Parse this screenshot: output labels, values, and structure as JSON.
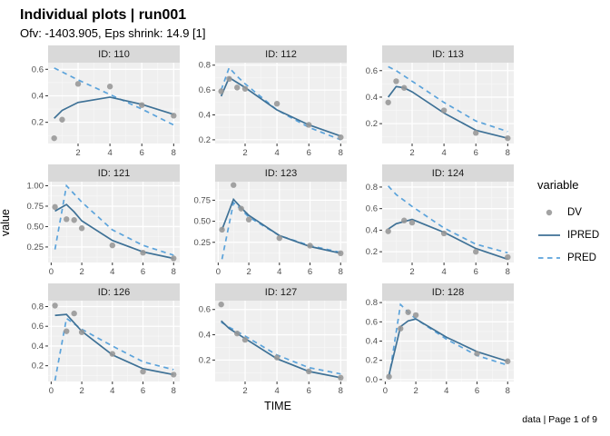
{
  "header": {
    "title": "Individual plots | run001",
    "subtitle": "Ofv: -1403.905, Eps shrink: 14.9 [1]"
  },
  "axes": {
    "x_label": "TIME",
    "y_label": "value"
  },
  "caption": "data | Page 1 of 9",
  "legend": {
    "title": "variable",
    "items": [
      {
        "label": "DV",
        "type": "point"
      },
      {
        "label": "IPRED",
        "type": "solid"
      },
      {
        "label": "PRED",
        "type": "dashed"
      }
    ]
  },
  "colors": {
    "dv": "#969696",
    "ipred": "#3E7196",
    "pred": "#5BA3DB",
    "strip_bg": "#D9D9D9",
    "strip_text": "#1A1A1A",
    "panel_bg": "#EFEFEF",
    "grid_major": "#FFFFFF",
    "grid_minor": "#F7F7F7",
    "tick_text": "#4D4D4D",
    "tick_mark": "#333333"
  },
  "chart_data": {
    "type": "line",
    "title": "Individual plots | run001",
    "xlabel": "TIME",
    "ylabel": "value",
    "legend_position": "right",
    "series_names": [
      "DV",
      "IPRED",
      "PRED"
    ],
    "facets": [
      {
        "id_label": "ID: 110",
        "xlim": [
          0.12,
          8.38
        ],
        "ylim": [
          0.04,
          0.65
        ],
        "xticks": [
          2,
          4,
          6,
          8
        ],
        "xtick_labels": [
          "2",
          "4",
          "6",
          "8"
        ],
        "yticks": [
          0.2,
          0.4,
          0.6
        ],
        "ytick_labels": [
          "0.2",
          "0.4",
          "0.6"
        ],
        "dv": [
          [
            0.5,
            0.08
          ],
          [
            1,
            0.22
          ],
          [
            2,
            0.49
          ],
          [
            4,
            0.47
          ],
          [
            6,
            0.33
          ],
          [
            8,
            0.25
          ]
        ],
        "ipred": [
          [
            0.5,
            0.23
          ],
          [
            1,
            0.29
          ],
          [
            2,
            0.35
          ],
          [
            4,
            0.39
          ],
          [
            6,
            0.335
          ],
          [
            8,
            0.26
          ]
        ],
        "pred": [
          [
            0.5,
            0.61
          ],
          [
            1,
            0.58
          ],
          [
            2,
            0.52
          ],
          [
            4,
            0.41
          ],
          [
            6,
            0.3
          ],
          [
            8,
            0.18
          ]
        ]
      },
      {
        "id_label": "ID: 112",
        "xlim": [
          0.12,
          8.38
        ],
        "ylim": [
          0.17,
          0.82
        ],
        "xticks": [
          2,
          4,
          6,
          8
        ],
        "xtick_labels": [
          "2",
          "4",
          "6",
          "8"
        ],
        "yticks": [
          0.2,
          0.4,
          0.6,
          0.8
        ],
        "ytick_labels": [
          "0.2",
          "0.4",
          "0.6",
          "0.8"
        ],
        "dv": [
          [
            0.5,
            0.59
          ],
          [
            1,
            0.69
          ],
          [
            1.5,
            0.62
          ],
          [
            2,
            0.61
          ],
          [
            4,
            0.49
          ],
          [
            6,
            0.32
          ],
          [
            8,
            0.22
          ]
        ],
        "ipred": [
          [
            0.5,
            0.55
          ],
          [
            1,
            0.7
          ],
          [
            1.5,
            0.66
          ],
          [
            2,
            0.62
          ],
          [
            4,
            0.44
          ],
          [
            6,
            0.32
          ],
          [
            8,
            0.23
          ]
        ],
        "pred": [
          [
            0.5,
            0.6
          ],
          [
            1,
            0.78
          ],
          [
            1.5,
            0.71
          ],
          [
            2,
            0.65
          ],
          [
            4,
            0.44
          ],
          [
            6,
            0.3
          ],
          [
            8,
            0.2
          ]
        ]
      },
      {
        "id_label": "ID: 113",
        "xlim": [
          0.12,
          8.38
        ],
        "ylim": [
          0.05,
          0.66
        ],
        "xticks": [
          2,
          4,
          6,
          8
        ],
        "xtick_labels": [
          "2",
          "4",
          "6",
          "8"
        ],
        "yticks": [
          0.2,
          0.4,
          0.6
        ],
        "ytick_labels": [
          "0.2",
          "0.4",
          "0.6"
        ],
        "dv": [
          [
            0.5,
            0.36
          ],
          [
            1,
            0.52
          ],
          [
            1.5,
            0.47
          ],
          [
            4,
            0.3
          ],
          [
            6,
            0.13
          ],
          [
            8,
            0.09
          ]
        ],
        "ipred": [
          [
            0.5,
            0.4
          ],
          [
            1,
            0.48
          ],
          [
            1.5,
            0.47
          ],
          [
            2,
            0.44
          ],
          [
            4,
            0.28
          ],
          [
            6,
            0.15
          ],
          [
            8,
            0.09
          ]
        ],
        "pred": [
          [
            0.5,
            0.63
          ],
          [
            1,
            0.6
          ],
          [
            2,
            0.52
          ],
          [
            4,
            0.36
          ],
          [
            6,
            0.22
          ],
          [
            8,
            0.14
          ]
        ]
      },
      {
        "id_label": "ID: 121",
        "xlim": [
          -0.2,
          8.4
        ],
        "ylim": [
          0.06,
          1.05
        ],
        "xticks": [
          0,
          2,
          4,
          6,
          8
        ],
        "xtick_labels": [
          "0",
          "2",
          "4",
          "6",
          "8"
        ],
        "yticks": [
          0.25,
          0.5,
          0.75,
          1.0
        ],
        "ytick_labels": [
          "0.25",
          "0.50",
          "0.75",
          "1.00"
        ],
        "dv": [
          [
            0.25,
            0.74
          ],
          [
            1,
            0.59
          ],
          [
            1.5,
            0.58
          ],
          [
            2,
            0.48
          ],
          [
            4,
            0.27
          ],
          [
            6,
            0.18
          ],
          [
            8,
            0.11
          ]
        ],
        "ipred": [
          [
            0.25,
            0.69
          ],
          [
            1,
            0.77
          ],
          [
            1.5,
            0.68
          ],
          [
            2,
            0.57
          ],
          [
            4,
            0.33
          ],
          [
            6,
            0.19
          ],
          [
            8,
            0.11
          ]
        ],
        "pred": [
          [
            0.25,
            0.22
          ],
          [
            1,
            1.0
          ],
          [
            1.5,
            0.9
          ],
          [
            2,
            0.8
          ],
          [
            4,
            0.46
          ],
          [
            6,
            0.27
          ],
          [
            8,
            0.15
          ]
        ]
      },
      {
        "id_label": "ID: 123",
        "xlim": [
          -0.2,
          8.4
        ],
        "ylim": [
          0.01,
          0.97
        ],
        "xticks": [
          0,
          2,
          4,
          6,
          8
        ],
        "xtick_labels": [
          "0",
          "2",
          "4",
          "6",
          "8"
        ],
        "yticks": [
          0.25,
          0.5,
          0.75
        ],
        "ytick_labels": [
          "0.25",
          "0.50",
          "0.75"
        ],
        "dv": [
          [
            0.25,
            0.4
          ],
          [
            1,
            0.93
          ],
          [
            1.5,
            0.65
          ],
          [
            2,
            0.52
          ],
          [
            4,
            0.3
          ],
          [
            6,
            0.21
          ],
          [
            8,
            0.12
          ]
        ],
        "ipred": [
          [
            0.25,
            0.4
          ],
          [
            1,
            0.76
          ],
          [
            1.5,
            0.66
          ],
          [
            2,
            0.57
          ],
          [
            4,
            0.33
          ],
          [
            6,
            0.2
          ],
          [
            8,
            0.12
          ]
        ],
        "pred": [
          [
            0.25,
            0.05
          ],
          [
            1,
            0.72
          ],
          [
            1.5,
            0.64
          ],
          [
            2,
            0.55
          ],
          [
            4,
            0.33
          ],
          [
            6,
            0.21
          ],
          [
            8,
            0.13
          ]
        ]
      },
      {
        "id_label": "ID: 124",
        "xlim": [
          0.12,
          8.38
        ],
        "ylim": [
          0.1,
          0.85
        ],
        "xticks": [
          2,
          4,
          6,
          8
        ],
        "xtick_labels": [
          "2",
          "4",
          "6",
          "8"
        ],
        "yticks": [
          0.2,
          0.4,
          0.6,
          0.8
        ],
        "ytick_labels": [
          "0.2",
          "0.4",
          "0.6",
          "0.8"
        ],
        "dv": [
          [
            0.5,
            0.39
          ],
          [
            1.5,
            0.49
          ],
          [
            2,
            0.47
          ],
          [
            4,
            0.37
          ],
          [
            6,
            0.2
          ],
          [
            8,
            0.15
          ]
        ],
        "ipred": [
          [
            0.5,
            0.41
          ],
          [
            1,
            0.46
          ],
          [
            2,
            0.5
          ],
          [
            4,
            0.38
          ],
          [
            6,
            0.23
          ],
          [
            8,
            0.13
          ]
        ],
        "pred": [
          [
            0.5,
            0.81
          ],
          [
            1,
            0.73
          ],
          [
            2,
            0.62
          ],
          [
            4,
            0.42
          ],
          [
            6,
            0.27
          ],
          [
            8,
            0.19
          ]
        ]
      },
      {
        "id_label": "ID: 126",
        "xlim": [
          -0.2,
          8.4
        ],
        "ylim": [
          0.04,
          0.86
        ],
        "xticks": [
          0,
          2,
          4,
          6,
          8
        ],
        "xtick_labels": [
          "0",
          "2",
          "4",
          "6",
          "8"
        ],
        "yticks": [
          0.2,
          0.4,
          0.6,
          0.8
        ],
        "ytick_labels": [
          "0.2",
          "0.4",
          "0.6",
          "0.8"
        ],
        "dv": [
          [
            0.25,
            0.81
          ],
          [
            1,
            0.55
          ],
          [
            1.5,
            0.73
          ],
          [
            2,
            0.54
          ],
          [
            4,
            0.32
          ],
          [
            6,
            0.14
          ],
          [
            8,
            0.11
          ]
        ],
        "ipred": [
          [
            0.25,
            0.71
          ],
          [
            1,
            0.72
          ],
          [
            2,
            0.55
          ],
          [
            4,
            0.31
          ],
          [
            6,
            0.17
          ],
          [
            8,
            0.11
          ]
        ],
        "pred": [
          [
            0.25,
            0.05
          ],
          [
            1,
            0.68
          ],
          [
            2,
            0.57
          ],
          [
            4,
            0.4
          ],
          [
            6,
            0.24
          ],
          [
            8,
            0.16
          ]
        ]
      },
      {
        "id_label": "ID: 127",
        "xlim": [
          0.12,
          8.38
        ],
        "ylim": [
          0.03,
          0.67
        ],
        "xticks": [
          2,
          4,
          6,
          8
        ],
        "xtick_labels": [
          "2",
          "4",
          "6",
          "8"
        ],
        "yticks": [
          0.2,
          0.4,
          0.6
        ],
        "ytick_labels": [
          "0.2",
          "0.4",
          "0.6"
        ],
        "dv": [
          [
            0.5,
            0.64
          ],
          [
            1.5,
            0.41
          ],
          [
            2,
            0.36
          ],
          [
            4,
            0.22
          ],
          [
            6,
            0.11
          ],
          [
            8,
            0.06
          ]
        ],
        "ipred": [
          [
            0.5,
            0.51
          ],
          [
            1,
            0.45
          ],
          [
            2,
            0.37
          ],
          [
            4,
            0.21
          ],
          [
            6,
            0.11
          ],
          [
            8,
            0.06
          ]
        ],
        "pred": [
          [
            0.5,
            0.5
          ],
          [
            1,
            0.46
          ],
          [
            2,
            0.39
          ],
          [
            4,
            0.24
          ],
          [
            6,
            0.14
          ],
          [
            8,
            0.09
          ]
        ]
      },
      {
        "id_label": "ID: 128",
        "xlim": [
          -0.2,
          8.4
        ],
        "ylim": [
          -0.02,
          0.82
        ],
        "xticks": [
          0,
          2,
          4,
          6,
          8
        ],
        "xtick_labels": [
          "0",
          "2",
          "4",
          "6",
          "8"
        ],
        "yticks": [
          0.0,
          0.2,
          0.4,
          0.6,
          0.8
        ],
        "ytick_labels": [
          "0.0",
          "0.2",
          "0.4",
          "0.6",
          "0.8"
        ],
        "dv": [
          [
            0.25,
            0.03
          ],
          [
            1,
            0.53
          ],
          [
            1.5,
            0.7
          ],
          [
            2,
            0.67
          ],
          [
            6,
            0.27
          ],
          [
            8,
            0.19
          ]
        ],
        "ipred": [
          [
            0.25,
            0.05
          ],
          [
            1,
            0.55
          ],
          [
            1.5,
            0.61
          ],
          [
            2,
            0.63
          ],
          [
            4,
            0.44
          ],
          [
            6,
            0.29
          ],
          [
            8,
            0.19
          ]
        ],
        "pred": [
          [
            0.25,
            0.02
          ],
          [
            1,
            0.78
          ],
          [
            1.5,
            0.7
          ],
          [
            2,
            0.63
          ],
          [
            4,
            0.42
          ],
          [
            6,
            0.25
          ],
          [
            8,
            0.15
          ]
        ]
      }
    ]
  }
}
